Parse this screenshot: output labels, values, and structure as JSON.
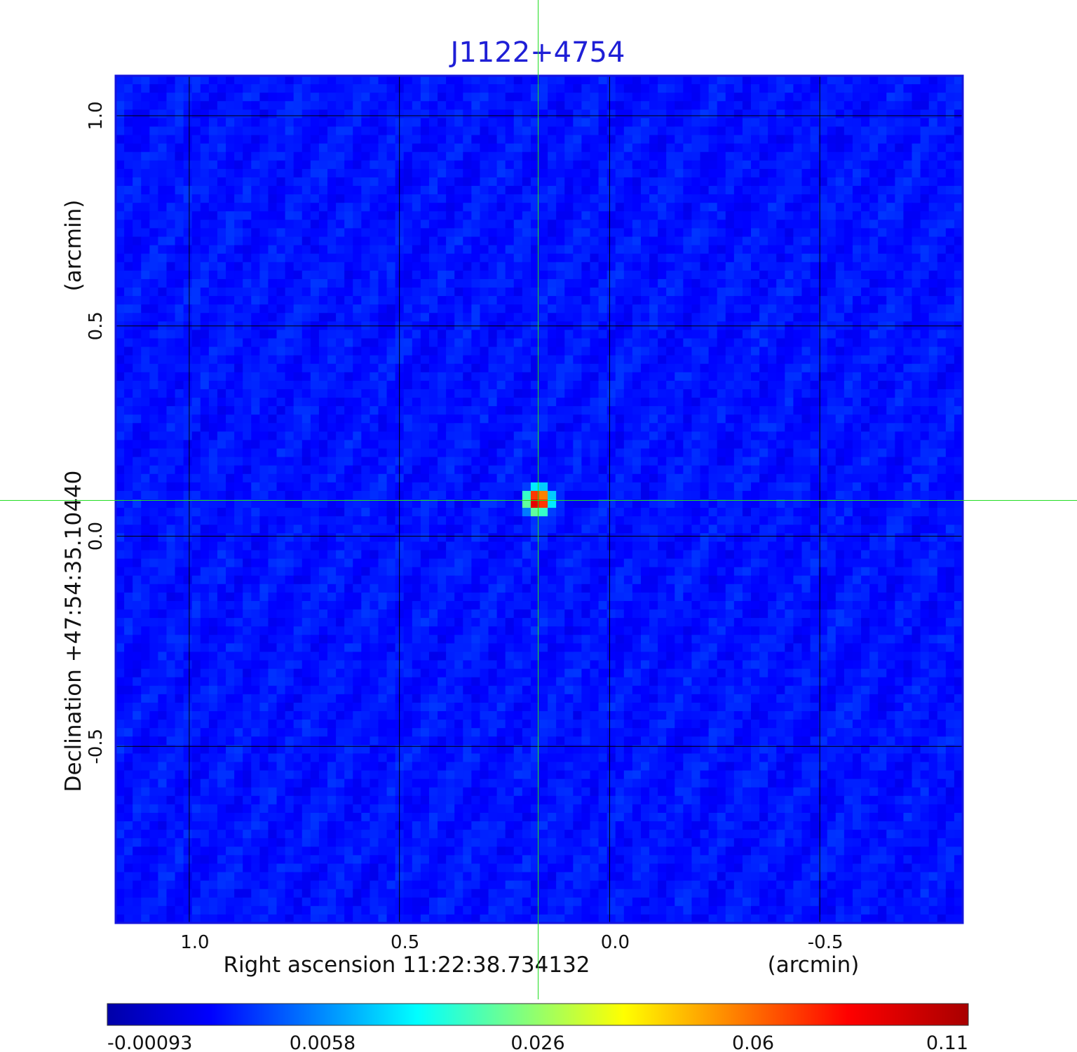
{
  "chart_data": {
    "type": "heatmap",
    "title": "J1122+4754",
    "xlabel": "Right ascension  11:22:38.734132",
    "xunit": "(arcmin)",
    "ylabel": "Declination  +47:54:35.10440",
    "yunit": "(arcmin)",
    "x_ticks": [
      1.0,
      0.5,
      0.0,
      -0.5
    ],
    "x_tick_labels": [
      "1.0",
      "0.5",
      "0.0",
      "-0.5"
    ],
    "y_ticks": [
      1.0,
      0.5,
      0.0,
      -0.5
    ],
    "y_tick_labels": [
      "1.0",
      "0.5",
      "0.0",
      "-0.5"
    ],
    "xlim": [
      1.175,
      -0.84
    ],
    "ylim": [
      -0.92,
      1.095
    ],
    "grid": true,
    "crosshair": {
      "x": 0.17,
      "y": 0.085,
      "color": "#22dd22"
    },
    "source": {
      "x": 0.17,
      "y": 0.085,
      "peak": 0.11,
      "fwhm_arcmin": 0.055
    },
    "background_level": -0.00093,
    "colorbar": {
      "orientation": "horizontal",
      "colormap": "jet",
      "tick_labels": [
        "-0.00093",
        "0.0058",
        "0.026",
        "0.06",
        "0.11"
      ]
    }
  },
  "colors": {
    "title": "#1f1fd6",
    "frame": "#1414e0",
    "grid": "#000000",
    "crosshair": "#22dd22"
  }
}
